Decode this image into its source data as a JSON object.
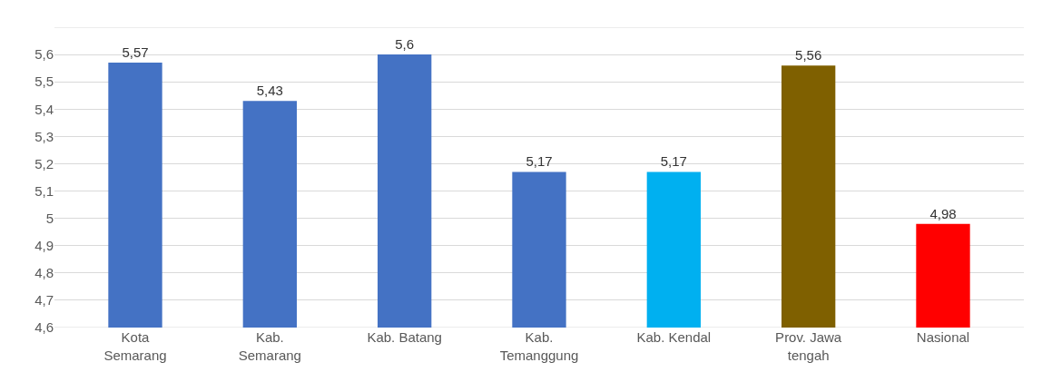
{
  "chart_data": {
    "type": "bar",
    "categories": [
      "Kota\nSemarang",
      "Kab.\nSemarang",
      "Kab. Batang",
      "Kab.\nTemanggung",
      "Kab. Kendal",
      "Prov. Jawa\ntengah",
      "Nasional"
    ],
    "values": [
      5.57,
      5.43,
      5.6,
      5.17,
      5.17,
      5.56,
      4.98
    ],
    "colors": [
      "#4472c4",
      "#4472c4",
      "#4472c4",
      "#4472c4",
      "#00b0f0",
      "#7f6000",
      "#ff0000"
    ],
    "value_labels": [
      "5,57",
      "5,43",
      "5,6",
      "5,17",
      "5,17",
      "5,56",
      "4,98"
    ],
    "ylim": [
      4.6,
      5.7
    ],
    "yticks": [
      {
        "value": 4.6,
        "label": "4,6"
      },
      {
        "value": 4.7,
        "label": "4,7"
      },
      {
        "value": 4.8,
        "label": "4,8"
      },
      {
        "value": 4.9,
        "label": "4,9"
      },
      {
        "value": 5,
        "label": "5"
      },
      {
        "value": 5.1,
        "label": "5,1"
      },
      {
        "value": 5.2,
        "label": "5,2"
      },
      {
        "value": 5.3,
        "label": "5,3"
      },
      {
        "value": 5.4,
        "label": "5,4"
      },
      {
        "value": 5.5,
        "label": "5,5"
      },
      {
        "value": 5.6,
        "label": "5,6"
      },
      {
        "value": 5.7,
        "label": null
      }
    ],
    "grid": "y"
  }
}
